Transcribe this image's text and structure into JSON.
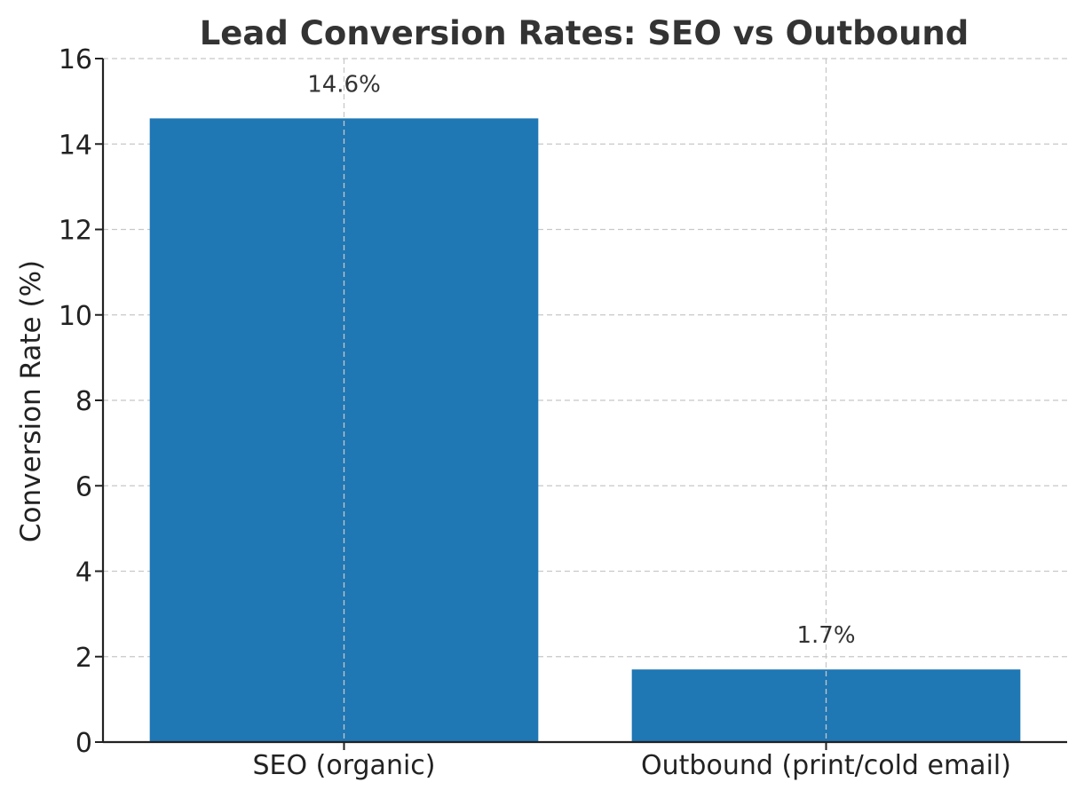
{
  "chart_data": {
    "type": "bar",
    "title": "Lead Conversion Rates: SEO vs Outbound",
    "xlabel": "",
    "ylabel": "Conversion Rate (%)",
    "categories": [
      "SEO (organic)",
      "Outbound (print/cold email)"
    ],
    "values": [
      14.6,
      1.7
    ],
    "data_labels": [
      "14.6%",
      "1.7%"
    ],
    "ylim": [
      0,
      16
    ],
    "yticks": [
      0,
      2,
      4,
      6,
      8,
      10,
      12,
      14,
      16
    ],
    "ytick_labels": [
      "0",
      "2",
      "4",
      "6",
      "8",
      "10",
      "12",
      "14",
      "16"
    ],
    "bar_color": "#1f77b4",
    "grid": true,
    "legend": "none"
  }
}
